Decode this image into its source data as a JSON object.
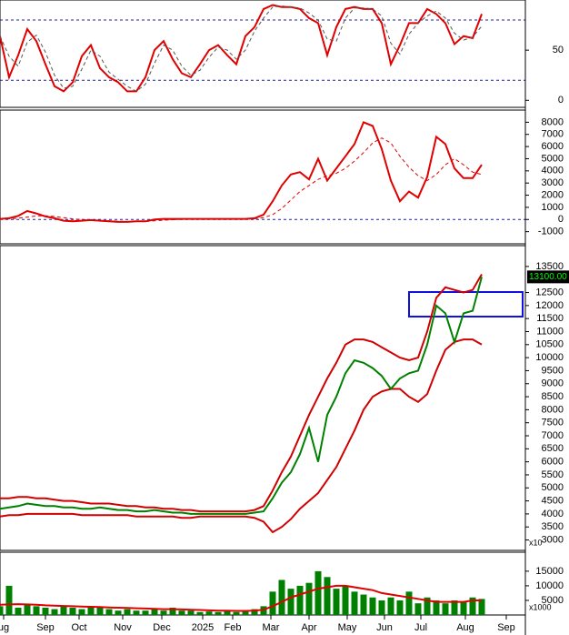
{
  "chart_data": {
    "type": "stock",
    "xlim": [
      0,
      57.8
    ],
    "xticks": [
      {
        "value": 0.4,
        "label": "ug"
      },
      {
        "value": 5,
        "label": "Sep"
      },
      {
        "value": 8.7,
        "label": "Oct"
      },
      {
        "value": 13.5,
        "label": "Nov"
      },
      {
        "value": 17.8,
        "label": "Dec"
      },
      {
        "value": 22.3,
        "label": "2025"
      },
      {
        "value": 25.6,
        "label": "Feb"
      },
      {
        "value": 29.8,
        "label": "Mar"
      },
      {
        "value": 34,
        "label": "Apr"
      },
      {
        "value": 38.2,
        "label": "May"
      },
      {
        "value": 42.3,
        "label": "Jun"
      },
      {
        "value": 46.3,
        "label": "Jul"
      },
      {
        "value": 51.2,
        "label": "Aug"
      },
      {
        "value": 55.7,
        "label": "Sep"
      }
    ],
    "panels": [
      {
        "type": "line",
        "ylim": [
          -7,
          100
        ],
        "yticks": [
          0,
          50
        ],
        "ref_lines": [
          20,
          80
        ],
        "series": [
          {
            "color": "#e00000",
            "values": [
              64,
              23,
              45,
              71,
              59,
              36,
              14,
              9,
              18,
              44,
              55,
              32,
              23,
              18,
              9,
              9,
              23,
              50,
              59,
              41,
              27,
              23,
              36,
              50,
              55,
              45,
              36,
              64,
              73,
              91,
              95,
              93,
              93,
              91,
              82,
              77,
              45,
              73,
              91,
              93,
              91,
              91,
              77,
              36,
              55,
              77,
              77,
              91,
              86,
              77,
              56,
              64,
              62,
              86
            ]
          },
          {
            "color": "#555555",
            "dashed": true,
            "values": [
              64,
              44,
              34,
              58,
              65,
              48,
              25,
              12,
              14,
              31,
              50,
              44,
              28,
              21,
              14,
              9,
              16,
              37,
              55,
              50,
              34,
              25,
              30,
              43,
              53,
              50,
              41,
              50,
              69,
              82,
              93,
              94,
              93,
              92,
              87,
              80,
              61,
              59,
              82,
              92,
              92,
              91,
              84,
              57,
              46,
              66,
              77,
              84,
              89,
              82,
              67,
              60,
              63,
              74
            ]
          }
        ]
      },
      {
        "type": "line",
        "ylim": [
          -2000,
          9000
        ],
        "yticks": [
          {
            "value": -1000,
            "label": "-1000"
          },
          0,
          1000,
          2000,
          3000,
          4000,
          5000,
          6000,
          7000,
          8000
        ],
        "ref_lines": [
          0
        ],
        "series": [
          {
            "color": "#e00000",
            "values": [
              50,
              100,
              300,
              700,
              500,
              250,
              100,
              -100,
              -150,
              -100,
              -50,
              -100,
              -150,
              -200,
              -200,
              -150,
              -150,
              0,
              50,
              50,
              50,
              50,
              50,
              50,
              50,
              50,
              50,
              50,
              100,
              400,
              1500,
              2800,
              3700,
              3900,
              3300,
              5000,
              3200,
              4200,
              5200,
              6200,
              8000,
              7700,
              5800,
              3200,
              1500,
              2300,
              1800,
              3500,
              6800,
              6200,
              4200,
              3400,
              3400,
              4500
            ]
          },
          {
            "color": "#e00000",
            "dashed": true,
            "values": [
              50,
              60,
              100,
              200,
              300,
              300,
              250,
              150,
              50,
              0,
              -50,
              -80,
              -110,
              -140,
              -170,
              -170,
              -160,
              -110,
              -60,
              -20,
              10,
              30,
              40,
              45,
              50,
              50,
              50,
              50,
              60,
              150,
              400,
              900,
              1600,
              2300,
              2800,
              3300,
              3600,
              3800,
              4200,
              4800,
              5500,
              6300,
              6700,
              6300,
              5200,
              4300,
              3600,
              3200,
              3700,
              4500,
              5000,
              4500,
              3900,
              3700
            ]
          }
        ]
      },
      {
        "type": "line",
        "ylim": [
          2600,
          14300
        ],
        "yticks": [
          3000,
          3500,
          4000,
          4500,
          5000,
          5500,
          6000,
          6500,
          7000,
          7500,
          8000,
          8500,
          9000,
          9500,
          10000,
          10500,
          11000,
          11500,
          12000,
          12500,
          13500
        ],
        "unit_label": "x10",
        "last_label": {
          "value": 13100,
          "label": "13100.00"
        },
        "series": [
          {
            "color": "#d00000",
            "values": [
              4600,
              4600,
              4650,
              4650,
              4600,
              4600,
              4550,
              4500,
              4500,
              4450,
              4400,
              4400,
              4400,
              4350,
              4300,
              4300,
              4250,
              4250,
              4200,
              4200,
              4150,
              4150,
              4100,
              4100,
              4100,
              4100,
              4100,
              4100,
              4150,
              4300,
              4900,
              5600,
              6200,
              7000,
              7800,
              8500,
              9200,
              9800,
              10500,
              10700,
              10700,
              10600,
              10400,
              10200,
              10000,
              9900,
              10000,
              11000,
              12300,
              12700,
              12600,
              12500,
              12600,
              13200
            ]
          },
          {
            "color": "#d00000",
            "values": [
              3900,
              3950,
              3950,
              4000,
              4000,
              4000,
              4000,
              4000,
              4000,
              3950,
              3950,
              3950,
              3950,
              3950,
              3950,
              3900,
              3900,
              3900,
              3900,
              3900,
              3850,
              3850,
              3900,
              3900,
              3900,
              3900,
              3900,
              3900,
              3850,
              3700,
              3300,
              3500,
              3800,
              4200,
              4500,
              4800,
              5300,
              5800,
              6500,
              7200,
              8000,
              8500,
              8700,
              8800,
              8800,
              8500,
              8300,
              8600,
              9500,
              10300,
              10600,
              10700,
              10700,
              10500
            ]
          },
          {
            "color": "#008000",
            "values": [
              4200,
              4250,
              4300,
              4400,
              4350,
              4300,
              4300,
              4250,
              4250,
              4200,
              4200,
              4250,
              4200,
              4150,
              4150,
              4100,
              4100,
              4150,
              4100,
              4050,
              4050,
              4000,
              4000,
              4000,
              4000,
              4000,
              4000,
              4000,
              4050,
              4100,
              4600,
              5200,
              5600,
              6300,
              7300,
              6000,
              7800,
              8500,
              9400,
              9900,
              9800,
              9600,
              9300,
              8800,
              9200,
              9400,
              9500,
              10500,
              12000,
              11700,
              10600,
              11700,
              11800,
              13100
            ]
          }
        ]
      },
      {
        "type": "bar",
        "ylim": [
          0,
          21500
        ],
        "yticks": [
          5000,
          10000,
          15000
        ],
        "unit_label": "x1000",
        "series": [
          {
            "type": "bar",
            "color": "#008000",
            "values": [
              3000,
              10000,
              2500,
              3500,
              3000,
              2500,
              2000,
              3000,
              2500,
              2000,
              3000,
              2500,
              2000,
              1500,
              2000,
              1500,
              1500,
              2000,
              1500,
              2500,
              1500,
              1500,
              1000,
              1200,
              1000,
              1500,
              1000,
              1200,
              2000,
              3000,
              8000,
              12000,
              9000,
              10000,
              11000,
              15000,
              13000,
              9000,
              10000,
              8000,
              7000,
              6000,
              5000,
              6000,
              5000,
              8000,
              4000,
              6000,
              5000,
              4000,
              5000,
              4500,
              6000,
              5500
            ]
          },
          {
            "type": "line",
            "color": "#e00000",
            "values": [
              3500,
              3600,
              3700,
              3600,
              3500,
              3300,
              3200,
              3100,
              3000,
              2900,
              2800,
              2700,
              2600,
              2500,
              2400,
              2300,
              2200,
              2100,
              2000,
              2000,
              1900,
              1800,
              1700,
              1600,
              1500,
              1500,
              1400,
              1400,
              1500,
              1800,
              3000,
              4500,
              6000,
              7000,
              8000,
              9000,
              9500,
              10000,
              10000,
              9500,
              9000,
              8500,
              7500,
              7000,
              6500,
              6000,
              5500,
              5000,
              4500,
              4500,
              4500,
              4500,
              5000,
              5000
            ]
          }
        ]
      }
    ]
  }
}
